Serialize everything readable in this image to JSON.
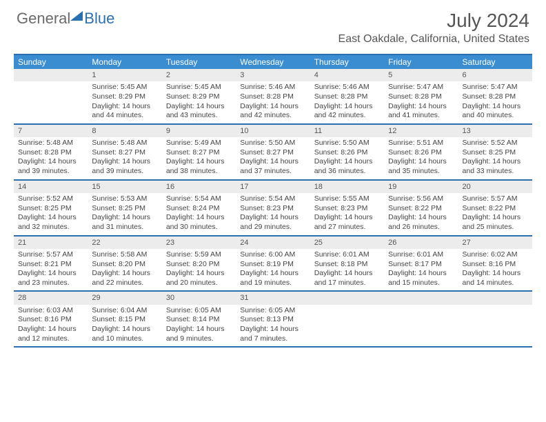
{
  "brand": {
    "general": "General",
    "blue": "Blue"
  },
  "header": {
    "month": "July 2024",
    "location": "East Oakdale, California, United States"
  },
  "colors": {
    "accent": "#2c6fb0",
    "dow_bg": "#3a8dd0",
    "daynum_bg": "#ececec",
    "text": "#444444",
    "logo_gray": "#6a6a6a"
  },
  "dow": [
    "Sunday",
    "Monday",
    "Tuesday",
    "Wednesday",
    "Thursday",
    "Friday",
    "Saturday"
  ],
  "weeks": [
    [
      {
        "n": "",
        "sunrise": "",
        "sunset": "",
        "daylight": ""
      },
      {
        "n": "1",
        "sunrise": "Sunrise: 5:45 AM",
        "sunset": "Sunset: 8:29 PM",
        "daylight": "Daylight: 14 hours and 44 minutes."
      },
      {
        "n": "2",
        "sunrise": "Sunrise: 5:45 AM",
        "sunset": "Sunset: 8:29 PM",
        "daylight": "Daylight: 14 hours and 43 minutes."
      },
      {
        "n": "3",
        "sunrise": "Sunrise: 5:46 AM",
        "sunset": "Sunset: 8:28 PM",
        "daylight": "Daylight: 14 hours and 42 minutes."
      },
      {
        "n": "4",
        "sunrise": "Sunrise: 5:46 AM",
        "sunset": "Sunset: 8:28 PM",
        "daylight": "Daylight: 14 hours and 42 minutes."
      },
      {
        "n": "5",
        "sunrise": "Sunrise: 5:47 AM",
        "sunset": "Sunset: 8:28 PM",
        "daylight": "Daylight: 14 hours and 41 minutes."
      },
      {
        "n": "6",
        "sunrise": "Sunrise: 5:47 AM",
        "sunset": "Sunset: 8:28 PM",
        "daylight": "Daylight: 14 hours and 40 minutes."
      }
    ],
    [
      {
        "n": "7",
        "sunrise": "Sunrise: 5:48 AM",
        "sunset": "Sunset: 8:28 PM",
        "daylight": "Daylight: 14 hours and 39 minutes."
      },
      {
        "n": "8",
        "sunrise": "Sunrise: 5:48 AM",
        "sunset": "Sunset: 8:27 PM",
        "daylight": "Daylight: 14 hours and 39 minutes."
      },
      {
        "n": "9",
        "sunrise": "Sunrise: 5:49 AM",
        "sunset": "Sunset: 8:27 PM",
        "daylight": "Daylight: 14 hours and 38 minutes."
      },
      {
        "n": "10",
        "sunrise": "Sunrise: 5:50 AM",
        "sunset": "Sunset: 8:27 PM",
        "daylight": "Daylight: 14 hours and 37 minutes."
      },
      {
        "n": "11",
        "sunrise": "Sunrise: 5:50 AM",
        "sunset": "Sunset: 8:26 PM",
        "daylight": "Daylight: 14 hours and 36 minutes."
      },
      {
        "n": "12",
        "sunrise": "Sunrise: 5:51 AM",
        "sunset": "Sunset: 8:26 PM",
        "daylight": "Daylight: 14 hours and 35 minutes."
      },
      {
        "n": "13",
        "sunrise": "Sunrise: 5:52 AM",
        "sunset": "Sunset: 8:25 PM",
        "daylight": "Daylight: 14 hours and 33 minutes."
      }
    ],
    [
      {
        "n": "14",
        "sunrise": "Sunrise: 5:52 AM",
        "sunset": "Sunset: 8:25 PM",
        "daylight": "Daylight: 14 hours and 32 minutes."
      },
      {
        "n": "15",
        "sunrise": "Sunrise: 5:53 AM",
        "sunset": "Sunset: 8:25 PM",
        "daylight": "Daylight: 14 hours and 31 minutes."
      },
      {
        "n": "16",
        "sunrise": "Sunrise: 5:54 AM",
        "sunset": "Sunset: 8:24 PM",
        "daylight": "Daylight: 14 hours and 30 minutes."
      },
      {
        "n": "17",
        "sunrise": "Sunrise: 5:54 AM",
        "sunset": "Sunset: 8:23 PM",
        "daylight": "Daylight: 14 hours and 29 minutes."
      },
      {
        "n": "18",
        "sunrise": "Sunrise: 5:55 AM",
        "sunset": "Sunset: 8:23 PM",
        "daylight": "Daylight: 14 hours and 27 minutes."
      },
      {
        "n": "19",
        "sunrise": "Sunrise: 5:56 AM",
        "sunset": "Sunset: 8:22 PM",
        "daylight": "Daylight: 14 hours and 26 minutes."
      },
      {
        "n": "20",
        "sunrise": "Sunrise: 5:57 AM",
        "sunset": "Sunset: 8:22 PM",
        "daylight": "Daylight: 14 hours and 25 minutes."
      }
    ],
    [
      {
        "n": "21",
        "sunrise": "Sunrise: 5:57 AM",
        "sunset": "Sunset: 8:21 PM",
        "daylight": "Daylight: 14 hours and 23 minutes."
      },
      {
        "n": "22",
        "sunrise": "Sunrise: 5:58 AM",
        "sunset": "Sunset: 8:20 PM",
        "daylight": "Daylight: 14 hours and 22 minutes."
      },
      {
        "n": "23",
        "sunrise": "Sunrise: 5:59 AM",
        "sunset": "Sunset: 8:20 PM",
        "daylight": "Daylight: 14 hours and 20 minutes."
      },
      {
        "n": "24",
        "sunrise": "Sunrise: 6:00 AM",
        "sunset": "Sunset: 8:19 PM",
        "daylight": "Daylight: 14 hours and 19 minutes."
      },
      {
        "n": "25",
        "sunrise": "Sunrise: 6:01 AM",
        "sunset": "Sunset: 8:18 PM",
        "daylight": "Daylight: 14 hours and 17 minutes."
      },
      {
        "n": "26",
        "sunrise": "Sunrise: 6:01 AM",
        "sunset": "Sunset: 8:17 PM",
        "daylight": "Daylight: 14 hours and 15 minutes."
      },
      {
        "n": "27",
        "sunrise": "Sunrise: 6:02 AM",
        "sunset": "Sunset: 8:16 PM",
        "daylight": "Daylight: 14 hours and 14 minutes."
      }
    ],
    [
      {
        "n": "28",
        "sunrise": "Sunrise: 6:03 AM",
        "sunset": "Sunset: 8:16 PM",
        "daylight": "Daylight: 14 hours and 12 minutes."
      },
      {
        "n": "29",
        "sunrise": "Sunrise: 6:04 AM",
        "sunset": "Sunset: 8:15 PM",
        "daylight": "Daylight: 14 hours and 10 minutes."
      },
      {
        "n": "30",
        "sunrise": "Sunrise: 6:05 AM",
        "sunset": "Sunset: 8:14 PM",
        "daylight": "Daylight: 14 hours and 9 minutes."
      },
      {
        "n": "31",
        "sunrise": "Sunrise: 6:05 AM",
        "sunset": "Sunset: 8:13 PM",
        "daylight": "Daylight: 14 hours and 7 minutes."
      },
      {
        "n": "",
        "sunrise": "",
        "sunset": "",
        "daylight": ""
      },
      {
        "n": "",
        "sunrise": "",
        "sunset": "",
        "daylight": ""
      },
      {
        "n": "",
        "sunrise": "",
        "sunset": "",
        "daylight": ""
      }
    ]
  ]
}
